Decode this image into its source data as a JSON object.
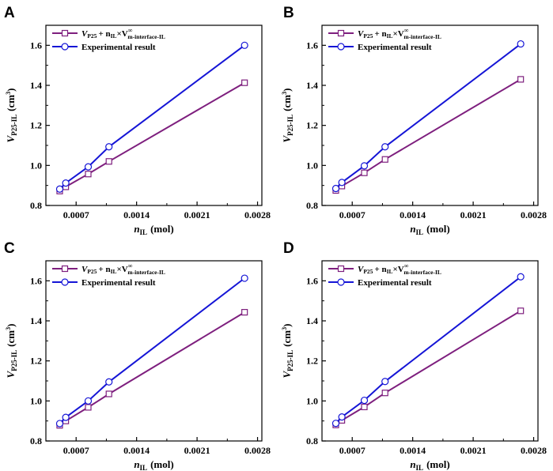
{
  "chart_data": [
    {
      "panel": "A",
      "type": "line",
      "x": [
        0.00051,
        0.00058,
        0.00084,
        0.00108,
        0.00265
      ],
      "series": [
        {
          "name": "model",
          "color": "#7e1f7e",
          "marker": "square",
          "values": [
            0.872,
            0.893,
            0.957,
            1.02,
            1.413
          ]
        },
        {
          "name": "Experimental result",
          "color": "#1515d6",
          "marker": "circle",
          "values": [
            0.882,
            0.912,
            0.993,
            1.093,
            1.6
          ]
        }
      ],
      "xlabel_main": "n",
      "xlabel_sub": "IL",
      "xlabel_unit": "(mol)",
      "ylabel_main": "V",
      "ylabel_sub": "P25-IL",
      "ylabel_unit": "(cm",
      "xticks": [
        "0.0007",
        "0.0014",
        "0.0021",
        "0.0028"
      ],
      "yticks": [
        "0.8",
        "1.0",
        "1.2",
        "1.4",
        "1.6"
      ],
      "xlim": [
        0.00035,
        0.00285
      ],
      "ylim": [
        0.8,
        1.7
      ],
      "legend_model": {
        "v": "V",
        "p25": "P25",
        "plus_n": "+ n",
        "il": "IL",
        "times_v": "×V",
        "sup": "∞",
        "msub": "m-interface-IL"
      },
      "legend_exp": "Experimental result"
    },
    {
      "panel": "B",
      "type": "line",
      "x": [
        0.00051,
        0.00058,
        0.00084,
        0.00108,
        0.00265
      ],
      "series": [
        {
          "name": "model",
          "color": "#7e1f7e",
          "marker": "square",
          "values": [
            0.875,
            0.897,
            0.963,
            1.03,
            1.43
          ]
        },
        {
          "name": "Experimental result",
          "color": "#1515d6",
          "marker": "circle",
          "values": [
            0.885,
            0.915,
            0.998,
            1.093,
            1.607
          ]
        }
      ],
      "xlabel_main": "n",
      "xlabel_sub": "IL",
      "xlabel_unit": "(mol)",
      "ylabel_main": "V",
      "ylabel_sub": "P25-IL",
      "ylabel_unit": "(cm",
      "xticks": [
        "0.0007",
        "0.0014",
        "0.0021",
        "0.0028"
      ],
      "yticks": [
        "0.8",
        "1.0",
        "1.2",
        "1.4",
        "1.6"
      ],
      "xlim": [
        0.00035,
        0.00285
      ],
      "ylim": [
        0.8,
        1.7
      ],
      "legend_model": {
        "v": "V",
        "p25": "P25",
        "plus_n": "+ n",
        "il": "IL",
        "times_v": "×V",
        "sup": "∞",
        "msub": "m-interface-IL"
      },
      "legend_exp": "Experimental result"
    },
    {
      "panel": "C",
      "type": "line",
      "x": [
        0.00051,
        0.00058,
        0.00084,
        0.00108,
        0.00265
      ],
      "series": [
        {
          "name": "model",
          "color": "#7e1f7e",
          "marker": "square",
          "values": [
            0.878,
            0.9,
            0.968,
            1.035,
            1.443
          ]
        },
        {
          "name": "Experimental result",
          "color": "#1515d6",
          "marker": "circle",
          "values": [
            0.887,
            0.918,
            1.0,
            1.095,
            1.613
          ]
        }
      ],
      "xlabel_main": "n",
      "xlabel_sub": "IL",
      "xlabel_unit": "(mol)",
      "ylabel_main": "V",
      "ylabel_sub": "P25-IL",
      "ylabel_unit": "(cm",
      "xticks": [
        "0.0007",
        "0.0014",
        "0.0021",
        "0.0028"
      ],
      "yticks": [
        "0.8",
        "1.0",
        "1.2",
        "1.4",
        "1.6"
      ],
      "xlim": [
        0.00035,
        0.00285
      ],
      "ylim": [
        0.8,
        1.7
      ],
      "legend_model": {
        "v": "V",
        "p25": "P25",
        "plus_n": "+ n",
        "il": "IL",
        "times_v": "×V",
        "sup": "∞",
        "msub": "m-interface-IL"
      },
      "legend_exp": "Experimental result"
    },
    {
      "panel": "D",
      "type": "line",
      "x": [
        0.00051,
        0.00058,
        0.00084,
        0.00108,
        0.00265
      ],
      "series": [
        {
          "name": "model",
          "color": "#7e1f7e",
          "marker": "square",
          "values": [
            0.88,
            0.903,
            0.97,
            1.04,
            1.45
          ]
        },
        {
          "name": "Experimental result",
          "color": "#1515d6",
          "marker": "circle",
          "values": [
            0.888,
            0.92,
            1.003,
            1.097,
            1.62
          ]
        }
      ],
      "xlabel_main": "n",
      "xlabel_sub": "IL",
      "xlabel_unit": "(mol)",
      "ylabel_main": "V",
      "ylabel_sub": "P25-IL",
      "ylabel_unit": "(cm",
      "xticks": [
        "0.0007",
        "0.0014",
        "0.0021",
        "0.0028"
      ],
      "yticks": [
        "0.8",
        "1.0",
        "1.2",
        "1.4",
        "1.6"
      ],
      "xlim": [
        0.00035,
        0.00285
      ],
      "ylim": [
        0.8,
        1.7
      ],
      "legend_model": {
        "v": "V",
        "p25": "P25",
        "plus_n": "+ n",
        "il": "IL",
        "times_v": "×V",
        "sup": "∞",
        "msub": "m-interface-IL"
      },
      "legend_exp": "Experimental result"
    }
  ]
}
